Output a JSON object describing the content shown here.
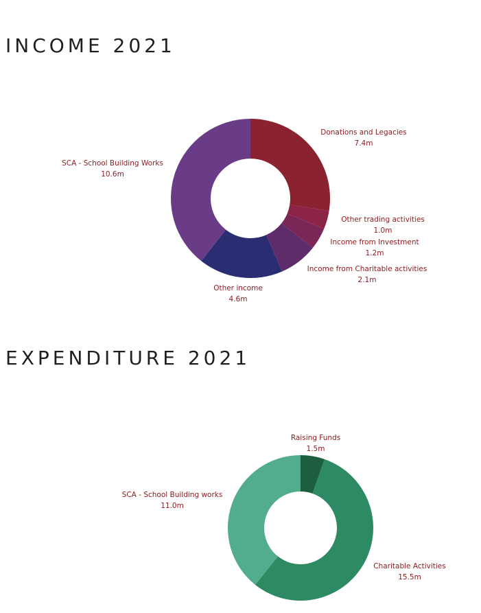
{
  "chart_data": [
    {
      "type": "pie",
      "title": "INCOME 2021",
      "slices": [
        {
          "label": "Donations and Legacies",
          "value_text": "7.4m",
          "value": 7.4,
          "color": "#8a2230"
        },
        {
          "label": "Other trading activities",
          "value_text": "1.0m",
          "value": 1.0,
          "color": "#8c2448"
        },
        {
          "label": "Income from Investment",
          "value_text": "1.2m",
          "value": 1.2,
          "color": "#7a2656"
        },
        {
          "label": "Income from Charitable activities",
          "value_text": "2.1m",
          "value": 2.1,
          "color": "#5f2c6a"
        },
        {
          "label": "Other income",
          "value_text": "4.6m",
          "value": 4.6,
          "color": "#2b2d72"
        },
        {
          "label": "SCA - School Building Works",
          "value_text": "10.6m",
          "value": 10.6,
          "color": "#6a3b86"
        }
      ]
    },
    {
      "type": "pie",
      "title": "EXPENDITURE 2021",
      "slices": [
        {
          "label": "Raising Funds",
          "value_text": "1.5m",
          "value": 1.5,
          "color": "#1d5e3e"
        },
        {
          "label": "Charitable Activities",
          "value_text": "15.5m",
          "value": 15.5,
          "color": "#2e8a62"
        },
        {
          "label": "SCA - School Building works",
          "value_text": "11.0m",
          "value": 11.0,
          "color": "#52ad8e"
        }
      ]
    }
  ]
}
